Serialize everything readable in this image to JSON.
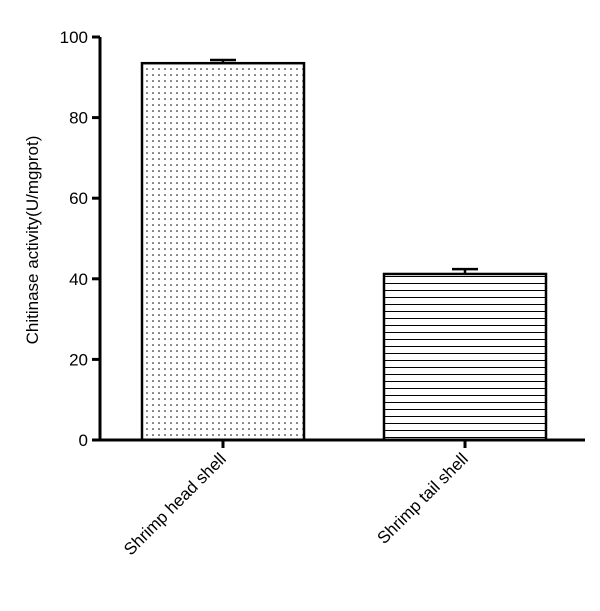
{
  "chart_data": {
    "type": "bar",
    "y_label": "Chitinase activity(U/mgprot)",
    "categories": [
      "Shrimp head shell",
      "Shrimp tail shell"
    ],
    "values": [
      93.5,
      41.2
    ],
    "errors": [
      0.8,
      1.2
    ],
    "patterns": [
      "dots",
      "hlines"
    ],
    "color": "#000000",
    "ylim": [
      0,
      100
    ],
    "yticks": [
      0,
      20,
      40,
      60,
      80,
      100
    ]
  }
}
